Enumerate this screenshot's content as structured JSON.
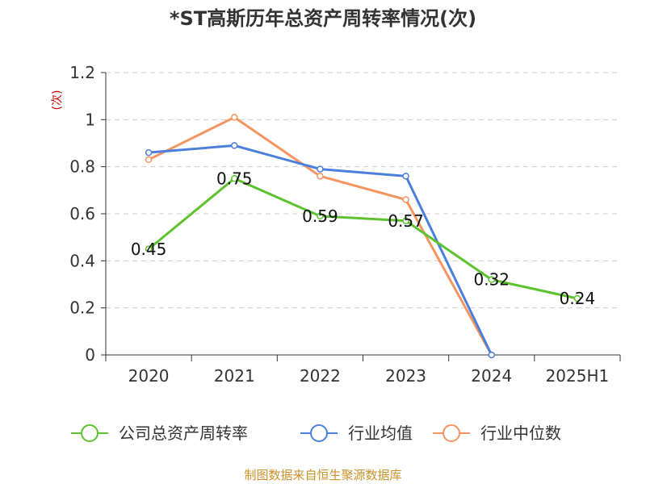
{
  "chart_data": {
    "type": "line",
    "title": "*ST高斯历年总资产周转率情况(次)",
    "ylabel": "(次)",
    "xlabel": "",
    "categories": [
      "2020",
      "2021",
      "2022",
      "2023",
      "2024",
      "2025H1"
    ],
    "ylim": [
      0,
      1.2
    ],
    "yticks": [
      "0",
      "0.2",
      "0.4",
      "0.6",
      "0.8",
      "1",
      "1.2"
    ],
    "grid": true,
    "legend_position": "bottom",
    "series": [
      {
        "name": "公司总资产周转率",
        "color": "#5cc22e",
        "values": [
          0.45,
          0.75,
          0.59,
          0.57,
          0.32,
          0.24
        ],
        "labels": [
          "0.45",
          "0.75",
          "0.59",
          "0.57",
          "0.32",
          "0.24"
        ]
      },
      {
        "name": "行业均值",
        "color": "#4c7fdb",
        "values": [
          0.86,
          0.89,
          0.79,
          0.76,
          0.0,
          null
        ]
      },
      {
        "name": "行业中位数",
        "color": "#f59460",
        "values": [
          0.83,
          1.01,
          0.76,
          0.66,
          0.0,
          null
        ]
      }
    ],
    "source": "制图数据来自恒生聚源数据库"
  }
}
